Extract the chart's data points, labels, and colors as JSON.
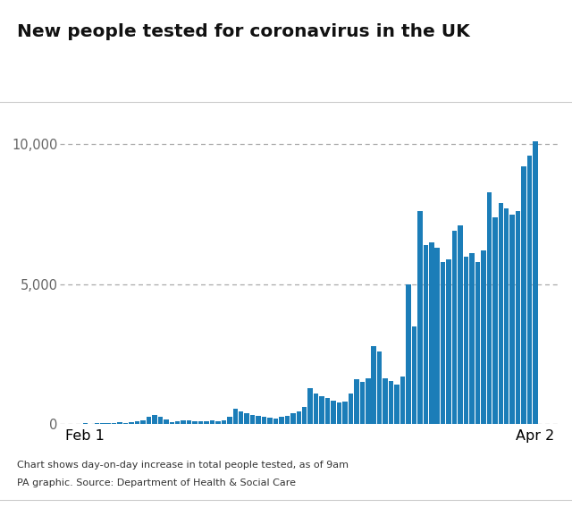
{
  "title": "New people tested for coronavirus in the UK",
  "subtitle1": "Chart shows day-on-day increase in total people tested, as of 9am",
  "subtitle2": "PA graphic. Source: Department of Health & Social Care",
  "bar_color": "#1b7db8",
  "background_color": "#ffffff",
  "yticks": [
    0,
    5000,
    10000
  ],
  "ylim": [
    0,
    10800
  ],
  "xlabel_left": "Feb 1",
  "xlabel_right": "Apr 2",
  "values": [
    30,
    20,
    30,
    25,
    40,
    50,
    60,
    50,
    80,
    100,
    150,
    250,
    320,
    280,
    180,
    80,
    100,
    150,
    130,
    120,
    110,
    100,
    140,
    90,
    150,
    280,
    550,
    460,
    380,
    330,
    300,
    280,
    220,
    200,
    260,
    300,
    380,
    460,
    620,
    1300,
    1100,
    1000,
    950,
    850,
    780,
    820,
    1100,
    1600,
    1500,
    1650,
    2800,
    2600,
    1650,
    1550,
    1400,
    1700,
    5000,
    3500,
    7600,
    6400,
    6500,
    6300,
    5800,
    5900,
    6900,
    7100,
    6000,
    6100,
    5800,
    6200,
    8300,
    7400,
    7900,
    7700,
    7500,
    7600,
    9200,
    9600,
    10100
  ]
}
